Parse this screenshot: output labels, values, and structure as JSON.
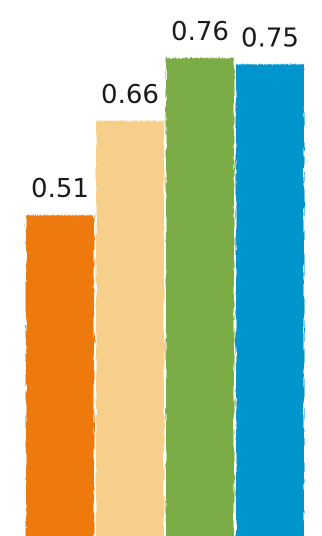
{
  "chart_data": {
    "type": "bar",
    "categories": [
      "",
      "",
      "",
      ""
    ],
    "values": [
      0.51,
      0.66,
      0.76,
      0.75
    ],
    "labels": [
      "0.51",
      "0.66",
      "0.76",
      "0.75"
    ],
    "colors": [
      "#ee7a0c",
      "#f6d08a",
      "#7cac45",
      "#0095cc"
    ],
    "ylim": [
      0,
      0.76
    ],
    "grid": false,
    "legend": "none",
    "style": "hand-drawn rough edges"
  }
}
